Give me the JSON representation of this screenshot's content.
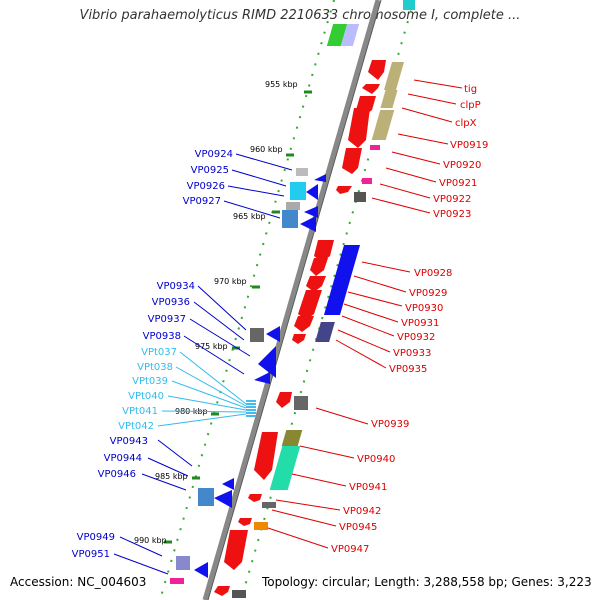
{
  "title": "Vibrio parahaemolyticus RIMD 2210633 chromosome I, complete ...",
  "footer": {
    "accession": "Accession: NC_004603",
    "topology": "Topology: circular; Length: 3,288,558 bp; Genes: 3,223"
  },
  "scale_labels": [
    "955 kbp",
    "960 kbp",
    "965 kbp",
    "970 kbp",
    "975 kbp",
    "980 kbp",
    "985 kbp",
    "990 kbp"
  ],
  "left_labels": [
    {
      "text": "VP0924",
      "color": "#0000cc"
    },
    {
      "text": "VP0925",
      "color": "#0000cc"
    },
    {
      "text": "VP0926",
      "color": "#0000cc"
    },
    {
      "text": "VP0927",
      "color": "#0000cc"
    },
    {
      "text": "VP0934",
      "color": "#0000cc"
    },
    {
      "text": "VP0936",
      "color": "#0000cc"
    },
    {
      "text": "VP0937",
      "color": "#0000cc"
    },
    {
      "text": "VP0938",
      "color": "#0000cc"
    },
    {
      "text": "VPt037",
      "color": "#33bbee"
    },
    {
      "text": "VPt038",
      "color": "#33bbee"
    },
    {
      "text": "VPt039",
      "color": "#33bbee"
    },
    {
      "text": "VPt040",
      "color": "#33bbee"
    },
    {
      "text": "VPt041",
      "color": "#33bbee"
    },
    {
      "text": "VPt042",
      "color": "#33bbee"
    },
    {
      "text": "VP0943",
      "color": "#0000cc"
    },
    {
      "text": "VP0944",
      "color": "#0000cc"
    },
    {
      "text": "VP0946",
      "color": "#0000cc"
    },
    {
      "text": "VP0949",
      "color": "#0000cc"
    },
    {
      "text": "VP0951",
      "color": "#0000cc"
    }
  ],
  "right_labels": [
    {
      "text": "tig",
      "color": "#dd0000"
    },
    {
      "text": "clpP",
      "color": "#dd0000"
    },
    {
      "text": "clpX",
      "color": "#dd0000"
    },
    {
      "text": "VP0919",
      "color": "#dd0000"
    },
    {
      "text": "VP0920",
      "color": "#dd0000"
    },
    {
      "text": "VP0921",
      "color": "#dd0000"
    },
    {
      "text": "VP0922",
      "color": "#dd0000"
    },
    {
      "text": "VP0923",
      "color": "#dd0000"
    },
    {
      "text": "VP0928",
      "color": "#dd0000"
    },
    {
      "text": "VP0929",
      "color": "#dd0000"
    },
    {
      "text": "VP0930",
      "color": "#dd0000"
    },
    {
      "text": "VP0931",
      "color": "#dd0000"
    },
    {
      "text": "VP0932",
      "color": "#dd0000"
    },
    {
      "text": "VP0933",
      "color": "#dd0000"
    },
    {
      "text": "VP0935",
      "color": "#dd0000"
    },
    {
      "text": "VP0939",
      "color": "#dd0000"
    },
    {
      "text": "VP0940",
      "color": "#dd0000"
    },
    {
      "text": "VP0941",
      "color": "#dd0000"
    },
    {
      "text": "VP0942",
      "color": "#dd0000"
    },
    {
      "text": "VP0945",
      "color": "#dd0000"
    },
    {
      "text": "VP0947",
      "color": "#dd0000"
    }
  ],
  "colors": {
    "backbone": "#888888",
    "tick": "#228822",
    "forward": "#ee1111",
    "reverse": "#1111ee",
    "trna": "#44bbee"
  }
}
